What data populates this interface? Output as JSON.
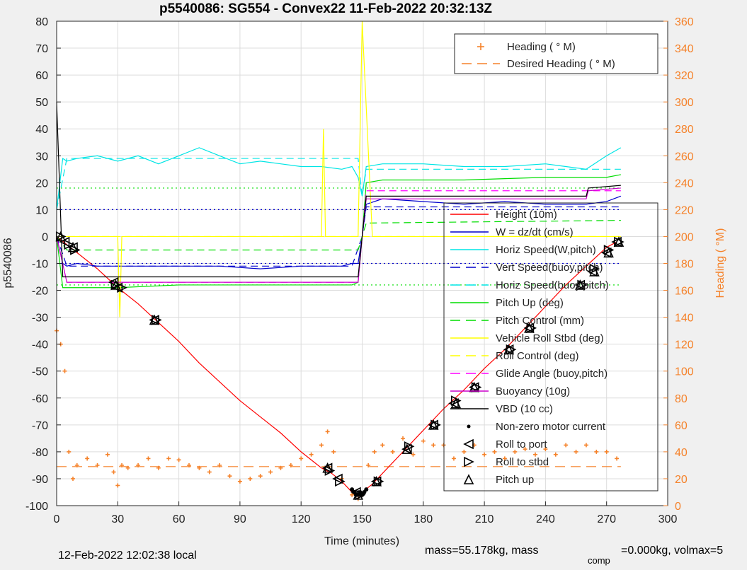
{
  "chart_data": {
    "type": "line",
    "title": "p5540086: SG554 - Convex22 11-Feb-2022 20:32:13Z",
    "xlabel": "Time (minutes)",
    "ylabel": "p5540086",
    "y2label": "Heading (  °M)",
    "xlim": [
      0,
      300
    ],
    "ylim": [
      -100,
      80
    ],
    "y2lim": [
      0,
      360
    ],
    "x_ticks": [
      "0",
      "30",
      "60",
      "90",
      "120",
      "150",
      "180",
      "210",
      "240",
      "270",
      "300"
    ],
    "y_ticks": [
      "80",
      "70",
      "60",
      "50",
      "40",
      "30",
      "20",
      "10",
      "0",
      "-10",
      "-20",
      "-30",
      "-40",
      "-50",
      "-60",
      "-70",
      "-80",
      "-90",
      "-100"
    ],
    "y2_ticks": [
      "360",
      "340",
      "320",
      "300",
      "280",
      "260",
      "240",
      "220",
      "200",
      "180",
      "160",
      "140",
      "120",
      "100",
      "80",
      "60",
      "40",
      "20",
      "0"
    ],
    "grid": true,
    "legend_heading": [
      {
        "name": "Heading (  ° M)",
        "color": "#f5822a",
        "marker": "+"
      },
      {
        "name": "Desired Heading (    ° M)",
        "color": "#f5822a",
        "style": "dashed"
      }
    ],
    "legend": [
      {
        "name": "Height (10m)",
        "color": "#ff0000",
        "style": "solid"
      },
      {
        "name": "W = dz/dt (cm/s)",
        "color": "#0000cc",
        "style": "solid"
      },
      {
        "name": "Horiz Speed(W,pitch)",
        "color": "#00e5e5",
        "style": "solid"
      },
      {
        "name": "Vert Speed(buoy,pitch)",
        "color": "#0000cc",
        "style": "dashed"
      },
      {
        "name": "Horiz Speed(buoy,pitch)",
        "color": "#00e5e5",
        "style": "dashed"
      },
      {
        "name": "Pitch Up (deg)",
        "color": "#00dd00",
        "style": "solid"
      },
      {
        "name": "Pitch Control (mm)",
        "color": "#00dd00",
        "style": "dashed"
      },
      {
        "name": "Vehicle Roll Stbd (deg)",
        "color": "#ffff00",
        "style": "solid"
      },
      {
        "name": "Roll Control (deg)",
        "color": "#ffff00",
        "style": "dashed"
      },
      {
        "name": "Glide Angle (buoy,pitch)",
        "color": "#ff00ff",
        "style": "dashed"
      },
      {
        "name": "Buoyancy (10g)",
        "color": "#cc00cc",
        "style": "solid"
      },
      {
        "name": "VBD (10 cc)",
        "color": "#000000",
        "style": "solid"
      },
      {
        "name": "Non-zero motor current",
        "color": "#000000",
        "marker": "dot"
      },
      {
        "name": "Roll to port",
        "color": "#000000",
        "marker": "tri-left"
      },
      {
        "name": "Roll to stbd",
        "color": "#000000",
        "marker": "tri-right"
      },
      {
        "name": "Pitch up",
        "color": "#000000",
        "marker": "tri-up"
      }
    ],
    "series": [
      {
        "name": "Height (10m)",
        "color": "#ff0000",
        "dash": "",
        "x": [
          0,
          5,
          10,
          20,
          30,
          40,
          50,
          60,
          70,
          80,
          90,
          100,
          110,
          120,
          130,
          135,
          140,
          145,
          148,
          150,
          155,
          160,
          170,
          180,
          190,
          200,
          210,
          220,
          230,
          240,
          250,
          260,
          270,
          275
        ],
        "y": [
          0,
          -3,
          -6,
          -12,
          -19,
          -25,
          -32,
          -39,
          -47,
          -54,
          -61,
          -67,
          -73,
          -80,
          -86,
          -88,
          -91,
          -95,
          -96,
          -95,
          -92,
          -88,
          -80,
          -72,
          -64,
          -57,
          -49,
          -42,
          -34,
          -26,
          -18,
          -11,
          -4,
          -2
        ]
      },
      {
        "name": "W = dz/dt (cm/s)",
        "color": "#0000cc",
        "dash": "",
        "x": [
          0,
          3,
          5,
          10,
          20,
          30,
          40,
          60,
          80,
          100,
          120,
          140,
          145,
          148,
          150,
          152,
          160,
          180,
          200,
          220,
          240,
          260,
          270,
          277
        ],
        "y": [
          0,
          -10,
          -11,
          -10,
          -11,
          -11,
          -11,
          -11,
          -11,
          -12,
          -11,
          -11,
          -10,
          -10,
          0,
          12,
          14,
          13,
          12,
          13,
          12,
          12,
          13,
          15
        ]
      },
      {
        "name": "Horiz Speed(W,pitch)",
        "color": "#00e5e5",
        "dash": "",
        "x": [
          0,
          3,
          5,
          10,
          20,
          30,
          40,
          50,
          60,
          70,
          80,
          90,
          100,
          110,
          120,
          130,
          140,
          145,
          148,
          150,
          152,
          160,
          180,
          200,
          220,
          240,
          250,
          260,
          270,
          277
        ],
        "y": [
          10,
          29,
          28,
          29,
          30,
          28,
          30,
          27,
          30,
          33,
          30,
          27,
          28,
          27,
          26,
          26,
          25,
          26,
          22,
          15,
          26,
          27,
          27,
          26,
          26,
          27,
          26,
          25,
          30,
          33
        ]
      },
      {
        "name": "Vert Speed(buoy,pitch)",
        "color": "#0000cc",
        "dash": "10,6",
        "x": [
          0,
          5,
          145,
          150,
          152,
          277
        ],
        "y": [
          0,
          -11,
          -11,
          0,
          11,
          11
        ]
      },
      {
        "name": "Horiz Speed(buoy,pitch)",
        "color": "#00e5e5",
        "dash": "10,6",
        "x": [
          0,
          5,
          145,
          148,
          150,
          152,
          277
        ],
        "y": [
          10,
          29,
          29,
          29,
          15,
          25,
          25
        ]
      },
      {
        "name": "Pitch Up (deg)",
        "color": "#00dd00",
        "dash": "",
        "x": [
          0,
          3,
          5,
          10,
          30,
          60,
          100,
          140,
          145,
          148,
          150,
          152,
          160,
          200,
          240,
          270,
          277
        ],
        "y": [
          0,
          -19,
          -19,
          -19,
          -19,
          -18,
          -18,
          -18,
          -18,
          -17,
          0,
          20,
          21,
          21,
          22,
          22,
          23
        ]
      },
      {
        "name": "Pitch Control (mm)",
        "color": "#00dd00",
        "dash": "10,6",
        "x": [
          0,
          5,
          145,
          148,
          150,
          152,
          277
        ],
        "y": [
          0,
          -5,
          -5,
          -5,
          0,
          5,
          6
        ]
      },
      {
        "name": "Vehicle Roll Stbd (deg)",
        "color": "#ffff00",
        "dash": "",
        "x": [
          0,
          5,
          10,
          30,
          31,
          32,
          60,
          90,
          120,
          130,
          131,
          132,
          140,
          148,
          150,
          155,
          160,
          180,
          200,
          220,
          240,
          260,
          270,
          277
        ],
        "y": [
          0,
          0,
          0,
          0,
          -30,
          0,
          0,
          0,
          0,
          0,
          40,
          0,
          0,
          0,
          80,
          0,
          0,
          0,
          0,
          0,
          0,
          0,
          0,
          0
        ]
      },
      {
        "name": "Roll Control (deg)",
        "color": "#ffff00",
        "dash": "10,6",
        "x": [
          0,
          277
        ],
        "y": [
          0,
          0
        ]
      },
      {
        "name": "Glide Angle (buoy,pitch)",
        "color": "#ff00ff",
        "dash": "10,6",
        "x": [
          0,
          5,
          145,
          148,
          150,
          152,
          277
        ],
        "y": [
          0,
          -17,
          -17,
          -17,
          0,
          17,
          17
        ]
      },
      {
        "name": "Buoyancy (10g)",
        "color": "#cc00cc",
        "dash": "",
        "x": [
          0,
          5,
          145,
          148,
          150,
          152,
          260,
          261,
          277
        ],
        "y": [
          0,
          -17,
          -17,
          -17,
          0,
          14,
          14,
          17,
          18
        ]
      },
      {
        "name": "VBD (10 cc)",
        "color": "#000000",
        "dash": "",
        "x": [
          0,
          3,
          5,
          145,
          148,
          150,
          152,
          260,
          261,
          277
        ],
        "y": [
          50,
          -15,
          -15,
          -15,
          -15,
          0,
          15,
          15,
          18,
          19
        ]
      }
    ],
    "heading": {
      "name": "Heading (  ° M)",
      "color": "#f5822a",
      "x": [
        0,
        2,
        4,
        6,
        8,
        10,
        15,
        20,
        25,
        28,
        30,
        32,
        35,
        40,
        45,
        50,
        55,
        60,
        65,
        70,
        75,
        80,
        85,
        90,
        95,
        100,
        105,
        110,
        115,
        120,
        125,
        130,
        133,
        136,
        140,
        145,
        148,
        150,
        153,
        156,
        160,
        165,
        170,
        175,
        180,
        185,
        190,
        195,
        200,
        205,
        210,
        215,
        220,
        225,
        230,
        235,
        240,
        245,
        250,
        255,
        260,
        265,
        270,
        275
      ],
      "y": [
        130,
        120,
        100,
        40,
        20,
        30,
        35,
        30,
        38,
        25,
        15,
        30,
        28,
        30,
        35,
        28,
        35,
        34,
        30,
        28,
        25,
        30,
        22,
        18,
        20,
        22,
        25,
        28,
        30,
        35,
        38,
        45,
        55,
        40,
        20,
        8,
        5,
        8,
        30,
        40,
        45,
        40,
        50,
        38,
        48,
        45,
        45,
        35,
        40,
        45,
        38,
        40,
        35,
        40,
        42,
        38,
        42,
        38,
        45,
        40,
        45,
        40,
        40,
        35
      ]
    },
    "desired_heading": {
      "name": "Desired Heading (    ° M)",
      "color": "#f5822a",
      "x": [
        0,
        277
      ],
      "y": [
        29,
        29
      ]
    },
    "markers_port": {
      "x": [
        4,
        8,
        28,
        30,
        48,
        133,
        138,
        147,
        157,
        172,
        185,
        195,
        205,
        222,
        232,
        257,
        263,
        270,
        275
      ],
      "y": [
        -2,
        -4,
        -17,
        -19,
        -31,
        -86,
        -90,
        -95,
        -91,
        -79,
        -70,
        -62,
        -56,
        -42,
        -34,
        -18,
        -13,
        -6,
        -2
      ]
    },
    "markers_stbd": {
      "x": [
        2,
        6,
        9,
        29,
        32,
        49,
        134,
        139,
        149,
        158,
        173,
        186,
        196,
        206,
        223,
        233,
        258,
        264,
        271,
        276
      ],
      "y": [
        0,
        -3,
        -5,
        -18,
        -19,
        -31,
        -87,
        -91,
        -96,
        -91,
        -78,
        -70,
        -61,
        -56,
        -42,
        -34,
        -18,
        -12,
        -5,
        -2
      ]
    },
    "markers_pitch_up": {
      "x": [
        2,
        8,
        29,
        48,
        133,
        148,
        157,
        172,
        185,
        196,
        205,
        222,
        232,
        257,
        264,
        271,
        276
      ],
      "y": [
        0,
        -4,
        -18,
        -31,
        -86,
        -96,
        -91,
        -79,
        -70,
        -62,
        -56,
        -42,
        -34,
        -18,
        -13,
        -6,
        -2
      ]
    },
    "motor_current": {
      "x": [
        145,
        146,
        147,
        148,
        149,
        150,
        151,
        152
      ],
      "y": [
        -94,
        -95,
        -96,
        -96,
        -95,
        -96,
        -95,
        -94
      ]
    }
  },
  "footer": {
    "local_time": "12-Feb-2022 12:02:38 local",
    "mass_text": "mass=55.178kg, mass",
    "comp_sub": "comp",
    "comp_rest": "=0.000kg, volmax=5"
  }
}
